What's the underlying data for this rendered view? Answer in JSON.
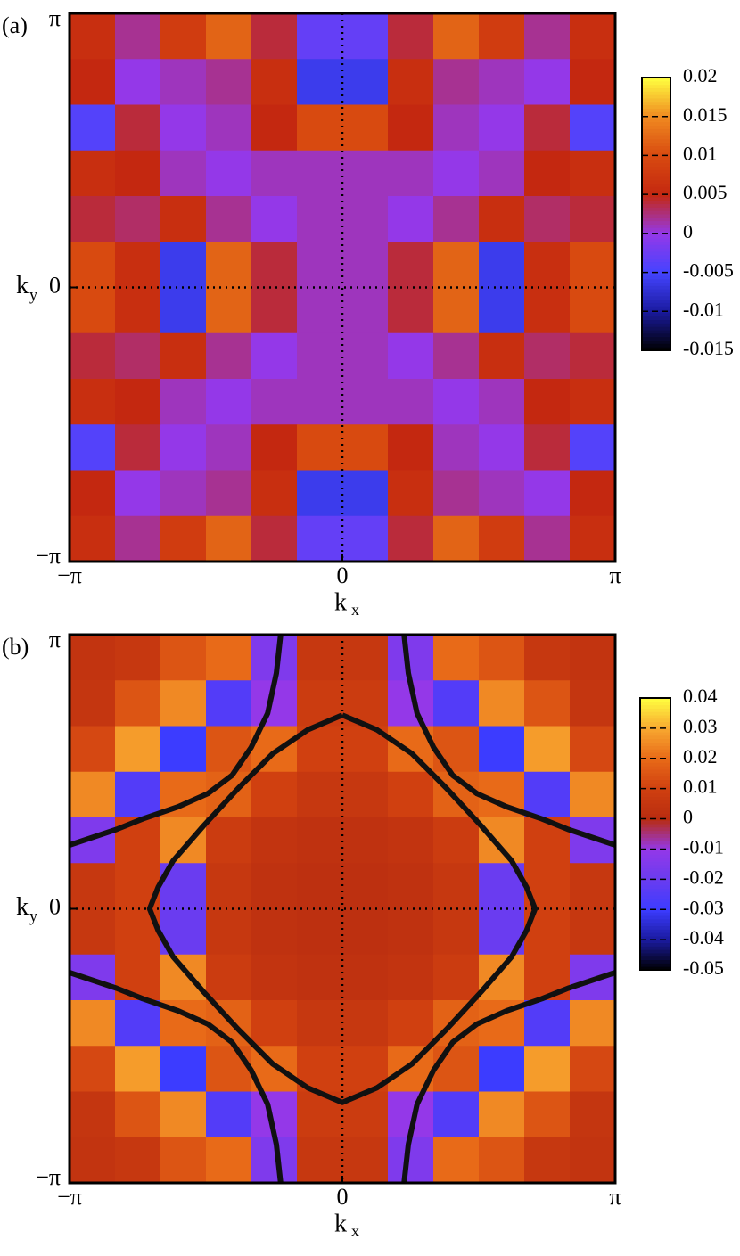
{
  "chart_data": [
    {
      "type": "heatmap",
      "panel_label": "(a)",
      "x": [
        -2.8798,
        -2.3562,
        -1.8326,
        -1.309,
        -0.7854,
        -0.2618,
        0.2618,
        0.7854,
        1.309,
        1.8326,
        2.3562,
        2.8798
      ],
      "y": [
        2.8798,
        2.3562,
        1.8326,
        1.309,
        0.7854,
        0.2618,
        -0.2618,
        -0.7854,
        -1.309,
        -1.8326,
        -2.3562,
        -2.8798
      ],
      "z": [
        [
          0.006,
          0.002,
          0.008,
          0.012,
          0.004,
          -0.003,
          -0.003,
          0.004,
          0.012,
          0.008,
          0.002,
          0.006
        ],
        [
          0.005,
          0.0,
          0.001,
          0.002,
          0.006,
          -0.006,
          -0.006,
          0.006,
          0.002,
          0.001,
          0.0,
          0.005
        ],
        [
          -0.004,
          0.004,
          0.0,
          0.001,
          0.005,
          0.01,
          0.01,
          0.005,
          0.001,
          0.0,
          0.004,
          -0.004
        ],
        [
          0.006,
          0.005,
          0.001,
          0.0,
          0.001,
          0.001,
          0.001,
          0.001,
          0.0,
          0.001,
          0.005,
          0.006
        ],
        [
          0.004,
          0.003,
          0.006,
          0.002,
          0.0,
          0.001,
          0.001,
          0.0,
          0.002,
          0.006,
          0.003,
          0.004
        ],
        [
          0.01,
          0.006,
          -0.006,
          0.012,
          0.004,
          0.001,
          0.001,
          0.004,
          0.012,
          -0.006,
          0.006,
          0.01
        ],
        [
          0.01,
          0.006,
          -0.006,
          0.012,
          0.004,
          0.001,
          0.001,
          0.004,
          0.012,
          -0.006,
          0.006,
          0.01
        ],
        [
          0.004,
          0.003,
          0.006,
          0.002,
          0.0,
          0.001,
          0.001,
          0.0,
          0.002,
          0.006,
          0.003,
          0.004
        ],
        [
          0.006,
          0.005,
          0.001,
          0.0,
          0.001,
          0.001,
          0.001,
          0.001,
          0.0,
          0.001,
          0.005,
          0.006
        ],
        [
          -0.004,
          0.004,
          0.0,
          0.001,
          0.005,
          0.01,
          0.01,
          0.005,
          0.001,
          0.0,
          0.004,
          -0.004
        ],
        [
          0.005,
          0.0,
          0.001,
          0.002,
          0.006,
          -0.006,
          -0.006,
          0.006,
          0.002,
          0.001,
          0.0,
          0.005
        ],
        [
          0.006,
          0.002,
          0.008,
          0.012,
          0.004,
          -0.003,
          -0.003,
          0.004,
          0.012,
          0.008,
          0.002,
          0.006
        ]
      ],
      "xlim": [
        -3.1416,
        3.1416
      ],
      "ylim": [
        -3.1416,
        3.1416
      ],
      "xticks": [
        {
          "value": -3.1416,
          "label": "−π"
        },
        0,
        {
          "value": 3.1416,
          "label": "π"
        }
      ],
      "yticks": [
        {
          "value": -3.1416,
          "label": "−π"
        },
        0,
        {
          "value": 3.1416,
          "label": "π"
        }
      ],
      "xlabel": "k",
      "xlabel_subscript": "x",
      "ylabel": "k",
      "ylabel_subscript": "y",
      "clim": [
        -0.015,
        0.02
      ],
      "cticks": [
        -0.015,
        -0.01,
        -0.005,
        0,
        0.005,
        0.01,
        0.015,
        0.02
      ],
      "colormap": [
        "#000000",
        "#1a1a9e",
        "#4444ff",
        "#9438e8",
        "#c42810",
        "#d84a10",
        "#f08a20",
        "#ffff40"
      ],
      "zero_lines": true
    },
    {
      "type": "heatmap",
      "panel_label": "(b)",
      "x": [
        -2.8798,
        -2.3562,
        -1.8326,
        -1.309,
        -0.7854,
        -0.2618,
        0.2618,
        0.7854,
        1.309,
        1.8326,
        2.3562,
        2.8798
      ],
      "y": [
        2.8798,
        2.3562,
        1.8326,
        1.309,
        0.7854,
        0.2618,
        -0.2618,
        -0.7854,
        -1.309,
        -1.8326,
        -2.3562,
        -2.8798
      ],
      "z": [
        [
          0.004,
          0.006,
          0.015,
          0.02,
          -0.015,
          0.006,
          0.006,
          -0.015,
          0.02,
          0.015,
          0.006,
          0.004
        ],
        [
          0.005,
          0.015,
          0.025,
          -0.025,
          -0.01,
          0.008,
          0.008,
          -0.01,
          -0.025,
          0.025,
          0.015,
          0.005
        ],
        [
          0.012,
          0.028,
          -0.03,
          0.015,
          0.02,
          0.01,
          0.01,
          0.02,
          0.015,
          -0.03,
          0.028,
          0.012
        ],
        [
          0.025,
          -0.025,
          0.02,
          0.018,
          0.01,
          0.006,
          0.006,
          0.01,
          0.018,
          0.02,
          -0.025,
          0.025
        ],
        [
          -0.015,
          0.01,
          0.025,
          0.008,
          0.004,
          0.003,
          0.003,
          0.004,
          0.008,
          0.025,
          0.01,
          -0.015
        ],
        [
          0.006,
          0.01,
          -0.02,
          0.006,
          0.003,
          0.002,
          0.002,
          0.003,
          0.006,
          -0.02,
          0.01,
          0.006
        ],
        [
          0.006,
          0.01,
          -0.02,
          0.006,
          0.003,
          0.002,
          0.002,
          0.003,
          0.006,
          -0.02,
          0.01,
          0.006
        ],
        [
          -0.015,
          0.01,
          0.025,
          0.008,
          0.004,
          0.003,
          0.003,
          0.004,
          0.008,
          0.025,
          0.01,
          -0.015
        ],
        [
          0.025,
          -0.025,
          0.02,
          0.018,
          0.01,
          0.006,
          0.006,
          0.01,
          0.018,
          0.02,
          -0.025,
          0.025
        ],
        [
          0.012,
          0.028,
          -0.03,
          0.015,
          0.02,
          0.01,
          0.01,
          0.02,
          0.015,
          -0.03,
          0.028,
          0.012
        ],
        [
          0.005,
          0.015,
          0.025,
          -0.025,
          -0.01,
          0.008,
          0.008,
          -0.01,
          -0.025,
          0.025,
          0.015,
          0.005
        ],
        [
          0.004,
          0.006,
          0.015,
          0.02,
          -0.015,
          0.006,
          0.006,
          -0.015,
          0.02,
          0.015,
          0.006,
          0.004
        ]
      ],
      "xlim": [
        -3.1416,
        3.1416
      ],
      "ylim": [
        -3.1416,
        3.1416
      ],
      "xticks": [
        {
          "value": -3.1416,
          "label": "−π"
        },
        0,
        {
          "value": 3.1416,
          "label": "π"
        }
      ],
      "yticks": [
        {
          "value": -3.1416,
          "label": "−π"
        },
        0,
        {
          "value": 3.1416,
          "label": "π"
        }
      ],
      "xlabel": "k",
      "xlabel_subscript": "x",
      "ylabel": "k",
      "ylabel_subscript": "y",
      "clim": [
        -0.05,
        0.04
      ],
      "cticks": [
        -0.05,
        -0.04,
        -0.03,
        -0.02,
        -0.01,
        0,
        0.01,
        0.02,
        0.03,
        0.04
      ],
      "colormap": [
        "#000000",
        "#1a1a9e",
        "#3c3cff",
        "#6a3cf0",
        "#9438e8",
        "#b82c10",
        "#d04010",
        "#e86a18",
        "#f8a830",
        "#ffff40"
      ],
      "zero_lines": true,
      "contours": [
        {
          "x": [
            0,
            0.4,
            0.8,
            1.2,
            1.6,
            1.95,
            2.12,
            2.22,
            2.12,
            1.95,
            1.6,
            1.2,
            0.8,
            0.4,
            0,
            -0.4,
            -0.8,
            -1.2,
            -1.6,
            -1.95,
            -2.12,
            -2.22,
            -2.12,
            -1.95,
            -1.6,
            -1.2,
            -0.8,
            -0.4,
            0
          ],
          "y": [
            2.22,
            2.05,
            1.78,
            1.38,
            0.95,
            0.55,
            0.25,
            0,
            -0.25,
            -0.55,
            -0.95,
            -1.38,
            -1.78,
            -2.05,
            -2.22,
            -2.05,
            -1.78,
            -1.38,
            -0.95,
            -0.55,
            -0.25,
            0,
            0.25,
            0.55,
            0.95,
            1.38,
            1.78,
            2.05,
            2.22
          ]
        },
        {
          "x": [
            -0.71,
            -0.76,
            -0.86,
            -1.05,
            -1.27,
            -1.55,
            -1.89,
            -2.3,
            -2.6,
            -3.1416
          ],
          "y": [
            3.1416,
            2.7,
            2.24,
            1.85,
            1.53,
            1.32,
            1.17,
            1.03,
            0.91,
            0.73
          ]
        },
        {
          "x": [
            0.71,
            0.76,
            0.86,
            1.05,
            1.27,
            1.55,
            1.89,
            2.3,
            2.6,
            3.1416
          ],
          "y": [
            3.1416,
            2.7,
            2.24,
            1.85,
            1.53,
            1.32,
            1.17,
            1.03,
            0.91,
            0.73
          ]
        },
        {
          "x": [
            -0.71,
            -0.76,
            -0.86,
            -1.05,
            -1.27,
            -1.55,
            -1.89,
            -2.3,
            -2.6,
            -3.1416
          ],
          "y": [
            -3.1416,
            -2.7,
            -2.24,
            -1.85,
            -1.53,
            -1.32,
            -1.17,
            -1.03,
            -0.91,
            -0.73
          ]
        },
        {
          "x": [
            0.71,
            0.76,
            0.86,
            1.05,
            1.27,
            1.55,
            1.89,
            2.3,
            2.6,
            3.1416
          ],
          "y": [
            -3.1416,
            -2.7,
            -2.24,
            -1.85,
            -1.53,
            -1.32,
            -1.17,
            -1.03,
            -0.91,
            -0.73
          ]
        }
      ]
    }
  ]
}
